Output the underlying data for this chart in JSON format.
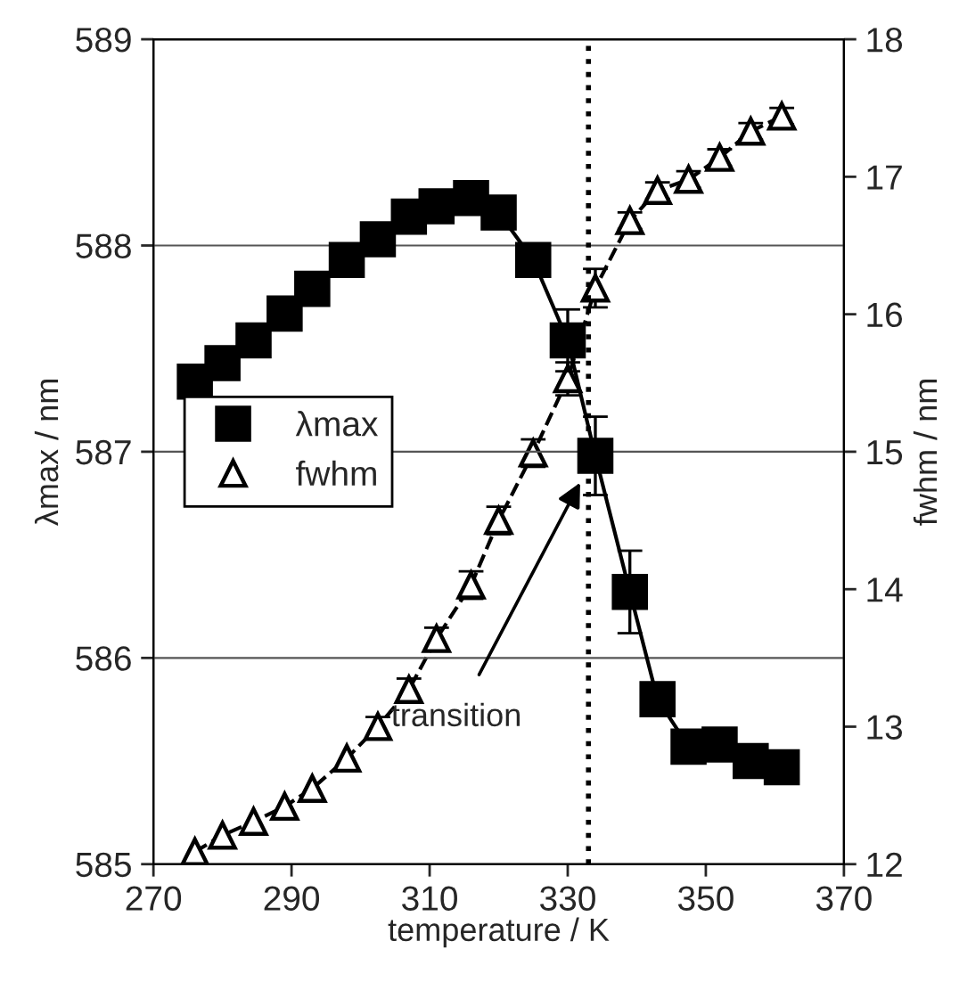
{
  "chart_data": {
    "type": "line",
    "xlabel": "temperature / K",
    "ylabel": "λmax / nm",
    "y2label": "fwhm / nm",
    "x": [
      276,
      280,
      284.5,
      289,
      293,
      298,
      302.5,
      307,
      311,
      316,
      320,
      325,
      330,
      334,
      339,
      343,
      347.5,
      352,
      356.5,
      361
    ],
    "series": [
      {
        "name": "λmax",
        "color": "#000000",
        "marker": "square",
        "line_style": "solid",
        "values": [
          587.34,
          587.43,
          587.54,
          587.67,
          587.79,
          587.93,
          588.03,
          588.14,
          588.19,
          588.23,
          588.16,
          587.93,
          587.54,
          586.98,
          586.32,
          585.8,
          585.57,
          585.58,
          585.5,
          585.47
        ],
        "errors": [
          null,
          null,
          null,
          null,
          null,
          null,
          null,
          null,
          null,
          null,
          null,
          null,
          0.15,
          0.19,
          0.2,
          null,
          null,
          null,
          null,
          null
        ]
      },
      {
        "name": "fwhm",
        "color": "#000000",
        "marker": "triangle",
        "line_style": "dashed",
        "axis": "y2",
        "values": [
          12.09,
          12.21,
          12.31,
          12.42,
          12.55,
          12.77,
          13.0,
          13.27,
          13.64,
          14.03,
          14.5,
          14.99,
          15.53,
          16.19,
          16.68,
          16.9,
          16.98,
          17.14,
          17.33,
          17.44
        ],
        "errors": [
          null,
          null,
          null,
          null,
          null,
          null,
          0.07,
          0.08,
          0.08,
          0.1,
          0.1,
          0.1,
          0.12,
          0.14,
          0.06,
          0.06,
          0.06,
          0.06,
          0.06,
          0.06
        ]
      }
    ],
    "xlim": [
      270,
      370
    ],
    "xticks": [
      270,
      290,
      310,
      330,
      350,
      370
    ],
    "ylim": [
      585,
      589
    ],
    "yticks": [
      585,
      586,
      587,
      588,
      589
    ],
    "y2lim": [
      12,
      18
    ],
    "y2ticks": [
      12,
      13,
      14,
      15,
      16,
      17,
      18
    ],
    "ref_lines": [
      {
        "axis": "x",
        "value": 333,
        "color": "#000000",
        "line_style": "dotted"
      }
    ],
    "annotations": [
      {
        "text": "transition",
        "x": 331.8,
        "y": 586.85
      }
    ],
    "grid": "y",
    "legend": "center left"
  }
}
